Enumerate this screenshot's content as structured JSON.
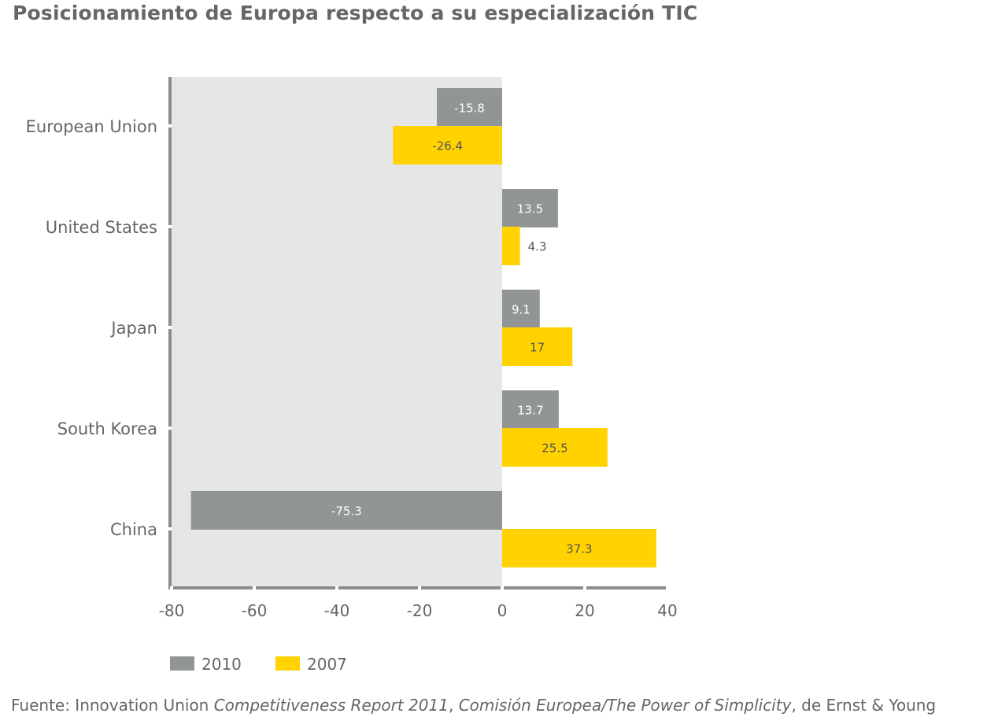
{
  "chart_data": {
    "type": "bar",
    "orientation": "horizontal",
    "title": "Posicionamiento de Europa respecto a su especialización TIC",
    "categories": [
      "European Union",
      "United States",
      "Japan",
      "South Korea",
      "China"
    ],
    "series": [
      {
        "name": "2010",
        "values": [
          -15.8,
          13.5,
          9.1,
          13.7,
          -75.3
        ],
        "color": "#929595"
      },
      {
        "name": "2007",
        "values": [
          -26.4,
          4.3,
          17,
          25.5,
          37.3
        ],
        "color": "#ffd200"
      }
    ],
    "data_labels": {
      "2010": [
        "-15.8",
        "13.5",
        "9.1",
        "13.7",
        "-75.3"
      ],
      "2007": [
        "-26.4",
        "4.3",
        "17",
        "25.5",
        "37.3"
      ]
    },
    "xlim": [
      -80,
      40
    ],
    "xticks": [
      "-80",
      "-60",
      "-40",
      "-20",
      "0",
      "20",
      "40"
    ],
    "xlabel": "",
    "ylabel": "",
    "grid": false,
    "negative_region_shading": "#e5e6e5",
    "legend_placement": "bottom-left"
  },
  "source": {
    "prefix": "Fuente: Innovation Union ",
    "italic1": "Competitiveness Report 2011",
    "middle": ", ",
    "italic2": "Comisión Europea/The Power of Simplicity",
    "suffix": ", de Ernst & Young"
  }
}
